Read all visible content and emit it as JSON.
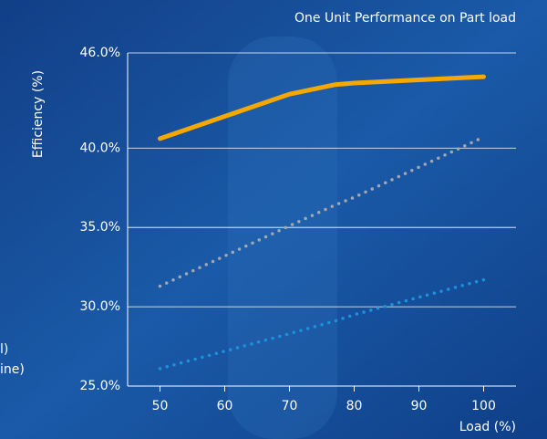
{
  "chart_data": {
    "type": "line",
    "title": "One Unit Performance on Part load",
    "ylabel": "Efficiency (%)",
    "xlabel": "Load (%)",
    "x": [
      50,
      60,
      70,
      77,
      80,
      90,
      100
    ],
    "series": [
      {
        "color": "#f5a800",
        "style": "solid",
        "values": [
          40.6,
          42.0,
          43.4,
          44.0,
          44.1,
          44.3,
          44.5
        ]
      },
      {
        "color": "#a3a7ae",
        "style": "dotted",
        "values": [
          31.3,
          33.2,
          35.1,
          36.4,
          36.9,
          38.8,
          40.7
        ]
      },
      {
        "color": "#1b93dc",
        "style": "dotted",
        "values": [
          26.1,
          27.2,
          28.3,
          29.1,
          29.5,
          30.6,
          31.7
        ]
      }
    ],
    "xlim": [
      45,
      105
    ],
    "xticks": [
      50,
      60,
      70,
      80,
      90,
      100
    ],
    "ylim": [
      25,
      46
    ],
    "yticks": [
      {
        "value": 25,
        "label": "25.0%"
      },
      {
        "value": 30,
        "label": "30.0%"
      },
      {
        "value": 35,
        "label": "35.0%"
      },
      {
        "value": 40,
        "label": "40.0%"
      },
      {
        "value": 46,
        "label": "46.0%"
      }
    ],
    "grid": true,
    "legend_fragments": [
      "l)",
      "ine)"
    ]
  }
}
